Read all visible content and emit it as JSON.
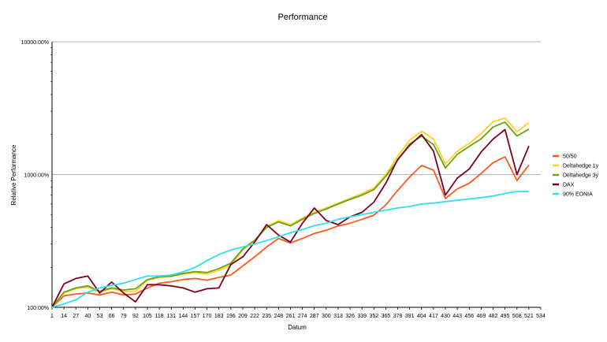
{
  "chart_data": {
    "type": "line",
    "title": "Performance",
    "xlabel": "Datum",
    "ylabel": "Relative Performance",
    "y_scale": "log",
    "ylim": [
      100,
      10000
    ],
    "xlim": [
      1,
      534
    ],
    "grid": "horizontal major",
    "legend_position": "right",
    "y_ticks": [
      {
        "value": 100,
        "label": "100.00%"
      },
      {
        "value": 1000,
        "label": "1000.00%"
      },
      {
        "value": 10000,
        "label": "10000.00%"
      }
    ],
    "x_ticks": [
      1,
      14,
      27,
      40,
      53,
      66,
      79,
      92,
      105,
      118,
      131,
      144,
      157,
      170,
      183,
      196,
      209,
      222,
      235,
      248,
      261,
      274,
      287,
      300,
      313,
      326,
      339,
      352,
      365,
      378,
      391,
      404,
      417,
      430,
      443,
      456,
      469,
      482,
      495,
      508,
      521,
      534
    ],
    "x": [
      1,
      14,
      27,
      40,
      53,
      66,
      79,
      92,
      105,
      118,
      131,
      144,
      157,
      170,
      183,
      196,
      209,
      222,
      235,
      248,
      261,
      274,
      287,
      300,
      313,
      326,
      339,
      352,
      365,
      378,
      391,
      404,
      417,
      430,
      443,
      456,
      469,
      482,
      495,
      508,
      521
    ],
    "series": [
      {
        "name": "50/50",
        "color": "#ff5a1a",
        "values": [
          100,
          122,
          126,
          128,
          124,
          130,
          124,
          126,
          140,
          152,
          156,
          162,
          165,
          160,
          168,
          175,
          205,
          240,
          285,
          330,
          305,
          330,
          360,
          380,
          410,
          430,
          460,
          495,
          590,
          760,
          960,
          1170,
          1080,
          660,
          780,
          860,
          1020,
          1230,
          1360,
          900,
          1180
        ]
      },
      {
        "name": "Deltahedge 1y",
        "color": "#ffd21e",
        "values": [
          100,
          128,
          138,
          142,
          130,
          138,
          132,
          132,
          160,
          168,
          170,
          178,
          182,
          178,
          190,
          208,
          270,
          320,
          405,
          450,
          420,
          470,
          520,
          560,
          610,
          660,
          720,
          790,
          1000,
          1370,
          1820,
          2120,
          1850,
          1200,
          1500,
          1720,
          2030,
          2500,
          2660,
          2100,
          2460
        ]
      },
      {
        "name": "Deltahedge 3y",
        "color": "#6ca01c",
        "values": [
          100,
          130,
          140,
          145,
          132,
          140,
          135,
          138,
          162,
          170,
          172,
          180,
          186,
          183,
          196,
          215,
          275,
          320,
          400,
          440,
          410,
          460,
          510,
          550,
          600,
          650,
          700,
          770,
          970,
          1280,
          1700,
          1950,
          1680,
          1120,
          1420,
          1630,
          1860,
          2280,
          2480,
          1950,
          2200
        ]
      },
      {
        "name": "DAX",
        "color": "#7e0021",
        "values": [
          100,
          150,
          165,
          172,
          128,
          155,
          128,
          110,
          148,
          148,
          145,
          140,
          130,
          138,
          140,
          210,
          240,
          310,
          420,
          350,
          310,
          430,
          560,
          450,
          420,
          480,
          520,
          620,
          860,
          1300,
          1660,
          2000,
          1500,
          700,
          940,
          1100,
          1480,
          1850,
          2180,
          1000,
          1640
        ]
      },
      {
        "name": "90% EONIA",
        "color": "#33ddee",
        "values": [
          100,
          106,
          114,
          130,
          140,
          146,
          152,
          162,
          172,
          172,
          175,
          185,
          200,
          225,
          250,
          270,
          285,
          300,
          318,
          340,
          365,
          385,
          412,
          430,
          460,
          480,
          500,
          520,
          540,
          560,
          575,
          600,
          610,
          625,
          640,
          655,
          670,
          690,
          720,
          745,
          745
        ]
      }
    ]
  }
}
